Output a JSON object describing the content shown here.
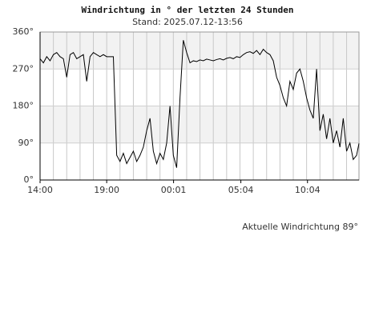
{
  "chart_data": {
    "type": "line",
    "title": "Windrichtung in ° der letzten 24 Stunden",
    "subtitle": "Stand: 2025.07.12-13:56",
    "annotation": "Aktuelle Windrichtung 89°",
    "x": [
      0,
      0.25,
      0.5,
      0.75,
      1,
      1.25,
      1.5,
      1.75,
      2,
      2.25,
      2.5,
      2.75,
      3,
      3.25,
      3.5,
      3.75,
      4,
      4.25,
      4.5,
      4.75,
      5,
      5.25,
      5.5,
      5.75,
      6,
      6.25,
      6.5,
      6.75,
      7,
      7.25,
      7.5,
      7.75,
      8,
      8.25,
      8.5,
      8.75,
      9,
      9.25,
      9.5,
      9.75,
      10,
      10.25,
      10.5,
      10.75,
      11,
      11.25,
      11.5,
      11.75,
      12,
      12.25,
      12.5,
      12.75,
      13,
      13.25,
      13.5,
      13.75,
      14,
      14.25,
      14.5,
      14.75,
      15,
      15.25,
      15.5,
      15.75,
      16,
      16.25,
      16.5,
      16.75,
      17,
      17.25,
      17.5,
      17.75,
      18,
      18.25,
      18.5,
      18.75,
      19,
      19.25,
      19.5,
      19.75,
      20,
      20.25,
      20.5,
      20.75,
      21,
      21.25,
      21.5,
      21.75,
      22,
      22.25,
      22.5,
      22.75,
      23,
      23.25,
      23.5,
      23.75,
      23.93
    ],
    "series": [
      {
        "color": "#000000",
        "values": [
          295,
          285,
          300,
          290,
          305,
          310,
          300,
          295,
          250,
          305,
          310,
          295,
          300,
          305,
          240,
          300,
          310,
          305,
          300,
          305,
          300,
          300,
          300,
          60,
          45,
          65,
          40,
          55,
          70,
          45,
          60,
          80,
          120,
          150,
          70,
          40,
          65,
          50,
          90,
          180,
          60,
          30,
          200,
          340,
          310,
          285,
          290,
          288,
          292,
          290,
          294,
          292,
          290,
          293,
          295,
          292,
          296,
          298,
          295,
          300,
          298,
          305,
          310,
          312,
          308,
          315,
          305,
          318,
          310,
          305,
          290,
          250,
          230,
          200,
          180,
          240,
          220,
          260,
          270,
          240,
          200,
          170,
          150,
          270,
          120,
          160,
          100,
          150,
          90,
          120,
          80,
          150,
          70,
          90,
          50,
          60,
          89
        ]
      }
    ],
    "xlim": [
      0,
      23.93
    ],
    "xticks": [
      {
        "value": 0,
        "label": "14:00"
      },
      {
        "value": 5,
        "label": "19:00"
      },
      {
        "value": 10.017,
        "label": "00:01"
      },
      {
        "value": 15.067,
        "label": "05:04"
      },
      {
        "value": 20.067,
        "label": "10:04"
      }
    ],
    "ylim": [
      0,
      360
    ],
    "yticks": [
      {
        "value": 0,
        "label": "0°"
      },
      {
        "value": 90,
        "label": "90°"
      },
      {
        "value": 180,
        "label": "180°"
      },
      {
        "value": 270,
        "label": "270°"
      },
      {
        "value": 360,
        "label": "360°"
      }
    ],
    "grid": true
  }
}
